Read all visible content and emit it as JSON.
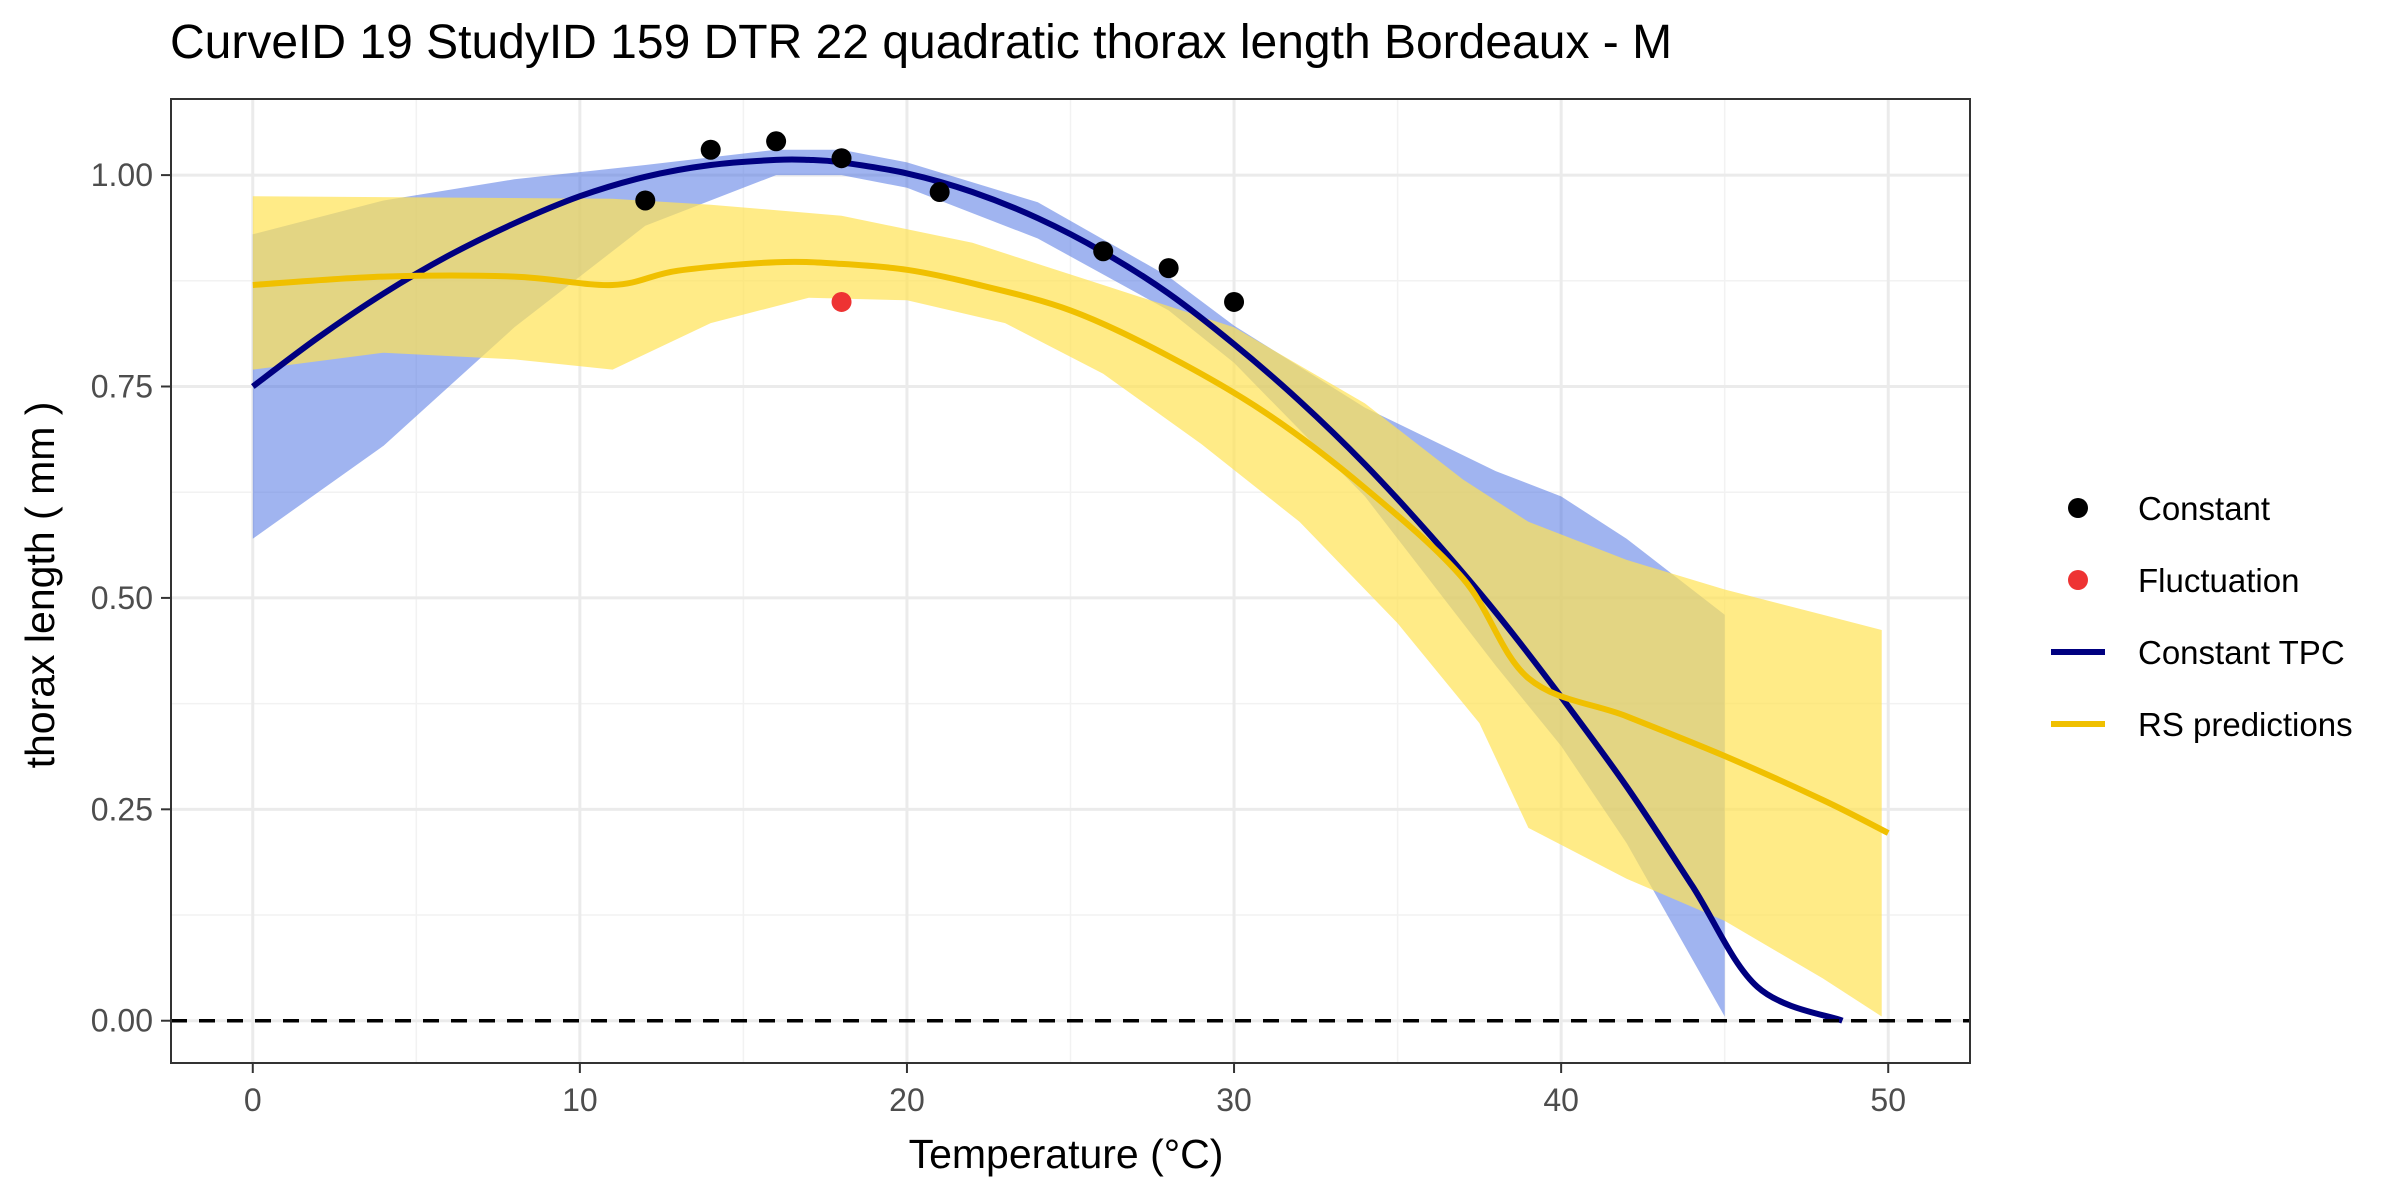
{
  "chart_data": {
    "type": "line",
    "title": "CurveID 19 StudyID 159 DTR 22 quadratic thorax length Bordeaux - M",
    "xlabel": "Temperature (°C)",
    "ylabel": "thorax length ( mm )",
    "xlim": [
      -2.5,
      52.5
    ],
    "ylim": [
      -0.05,
      1.09
    ],
    "x_ticks": [
      0,
      10,
      20,
      30,
      40,
      50
    ],
    "x_tick_labels": [
      "0",
      "10",
      "20",
      "30",
      "40",
      "50"
    ],
    "y_ticks": [
      0,
      0.25,
      0.5,
      0.75,
      1.0
    ],
    "y_tick_labels": [
      "0.00",
      "0.25",
      "0.50",
      "0.75",
      "1.00"
    ],
    "grid": true,
    "reference_line": {
      "y": 0,
      "style": "dashed"
    },
    "legend": {
      "position": "right",
      "entries": [
        {
          "label": "Constant",
          "kind": "point",
          "color": "#000000"
        },
        {
          "label": "Fluctuation",
          "kind": "point",
          "color": "#ee3333"
        },
        {
          "label": "Constant TPC",
          "kind": "line",
          "color": "#000080"
        },
        {
          "label": "RS predictions",
          "kind": "line",
          "color": "#f0c000"
        }
      ]
    },
    "series": [
      {
        "name": "Constant",
        "kind": "points",
        "color": "#000000",
        "points": [
          [
            12,
            0.97
          ],
          [
            14,
            1.03
          ],
          [
            16,
            1.04
          ],
          [
            18,
            1.02
          ],
          [
            21,
            0.98
          ],
          [
            26,
            0.91
          ],
          [
            28,
            0.89
          ],
          [
            30,
            0.85
          ]
        ]
      },
      {
        "name": "Fluctuation",
        "kind": "points",
        "color": "#ee3333",
        "points": [
          [
            18,
            0.85
          ]
        ]
      },
      {
        "name": "Constant TPC",
        "kind": "line",
        "color": "#000080",
        "ribbon_color": "#4169e1",
        "points": [
          [
            0,
            0.75
          ],
          [
            2,
            0.808
          ],
          [
            4,
            0.86
          ],
          [
            6,
            0.905
          ],
          [
            8,
            0.943
          ],
          [
            10,
            0.975
          ],
          [
            12,
            0.998
          ],
          [
            14,
            1.012
          ],
          [
            16,
            1.018
          ],
          [
            17,
            1.018
          ],
          [
            18,
            1.015
          ],
          [
            20,
            1.002
          ],
          [
            22,
            0.98
          ],
          [
            24,
            0.949
          ],
          [
            26,
            0.909
          ],
          [
            28,
            0.86
          ],
          [
            30,
            0.8
          ],
          [
            32,
            0.733
          ],
          [
            34,
            0.658
          ],
          [
            36,
            0.574
          ],
          [
            38,
            0.483
          ],
          [
            40,
            0.383
          ],
          [
            42,
            0.277
          ],
          [
            44,
            0.16
          ],
          [
            46,
            0.04
          ],
          [
            48.6,
            0.0
          ]
        ],
        "band_upper": [
          [
            0,
            0.93
          ],
          [
            4,
            0.97
          ],
          [
            8,
            0.995
          ],
          [
            12,
            1.012
          ],
          [
            16,
            1.03
          ],
          [
            18,
            1.03
          ],
          [
            20,
            1.015
          ],
          [
            24,
            0.968
          ],
          [
            28,
            0.88
          ],
          [
            30,
            0.822
          ],
          [
            34,
            0.725
          ],
          [
            38,
            0.65
          ],
          [
            40,
            0.62
          ],
          [
            42,
            0.57
          ],
          [
            45,
            0.48
          ]
        ],
        "band_lower": [
          [
            0,
            0.57
          ],
          [
            4,
            0.68
          ],
          [
            8,
            0.82
          ],
          [
            12,
            0.94
          ],
          [
            16,
            1.0
          ],
          [
            18,
            1.0
          ],
          [
            20,
            0.985
          ],
          [
            24,
            0.925
          ],
          [
            28,
            0.84
          ],
          [
            30,
            0.778
          ],
          [
            34,
            0.62
          ],
          [
            38,
            0.42
          ],
          [
            40,
            0.325
          ],
          [
            42,
            0.21
          ],
          [
            45,
            0.005
          ]
        ]
      },
      {
        "name": "RS predictions",
        "kind": "line",
        "color": "#f0c000",
        "ribbon_color": "#ffe354",
        "points": [
          [
            0,
            0.87
          ],
          [
            4,
            0.88
          ],
          [
            8,
            0.88
          ],
          [
            11,
            0.87
          ],
          [
            13,
            0.887
          ],
          [
            16,
            0.897
          ],
          [
            18,
            0.895
          ],
          [
            20,
            0.888
          ],
          [
            22,
            0.872
          ],
          [
            25,
            0.84
          ],
          [
            28,
            0.786
          ],
          [
            31,
            0.718
          ],
          [
            34,
            0.63
          ],
          [
            37,
            0.523
          ],
          [
            39,
            0.405
          ],
          [
            42,
            0.36
          ],
          [
            45,
            0.313
          ],
          [
            48,
            0.261
          ],
          [
            50,
            0.222
          ]
        ],
        "band_upper": [
          [
            0,
            0.975
          ],
          [
            11,
            0.972
          ],
          [
            14,
            0.965
          ],
          [
            18,
            0.952
          ],
          [
            22,
            0.92
          ],
          [
            26,
            0.87
          ],
          [
            30,
            0.82
          ],
          [
            34,
            0.73
          ],
          [
            37,
            0.64
          ],
          [
            39,
            0.59
          ],
          [
            42,
            0.545
          ],
          [
            45,
            0.51
          ],
          [
            48,
            0.48
          ],
          [
            49.8,
            0.462
          ]
        ],
        "band_lower": [
          [
            0,
            0.77
          ],
          [
            4,
            0.79
          ],
          [
            8,
            0.782
          ],
          [
            11,
            0.77
          ],
          [
            14,
            0.825
          ],
          [
            17,
            0.855
          ],
          [
            20,
            0.852
          ],
          [
            23,
            0.825
          ],
          [
            26,
            0.765
          ],
          [
            29,
            0.682
          ],
          [
            32,
            0.59
          ],
          [
            35,
            0.47
          ],
          [
            37.5,
            0.352
          ],
          [
            39,
            0.228
          ],
          [
            42,
            0.168
          ],
          [
            45,
            0.118
          ],
          [
            48,
            0.05
          ],
          [
            49.8,
            0.005
          ]
        ]
      }
    ]
  }
}
